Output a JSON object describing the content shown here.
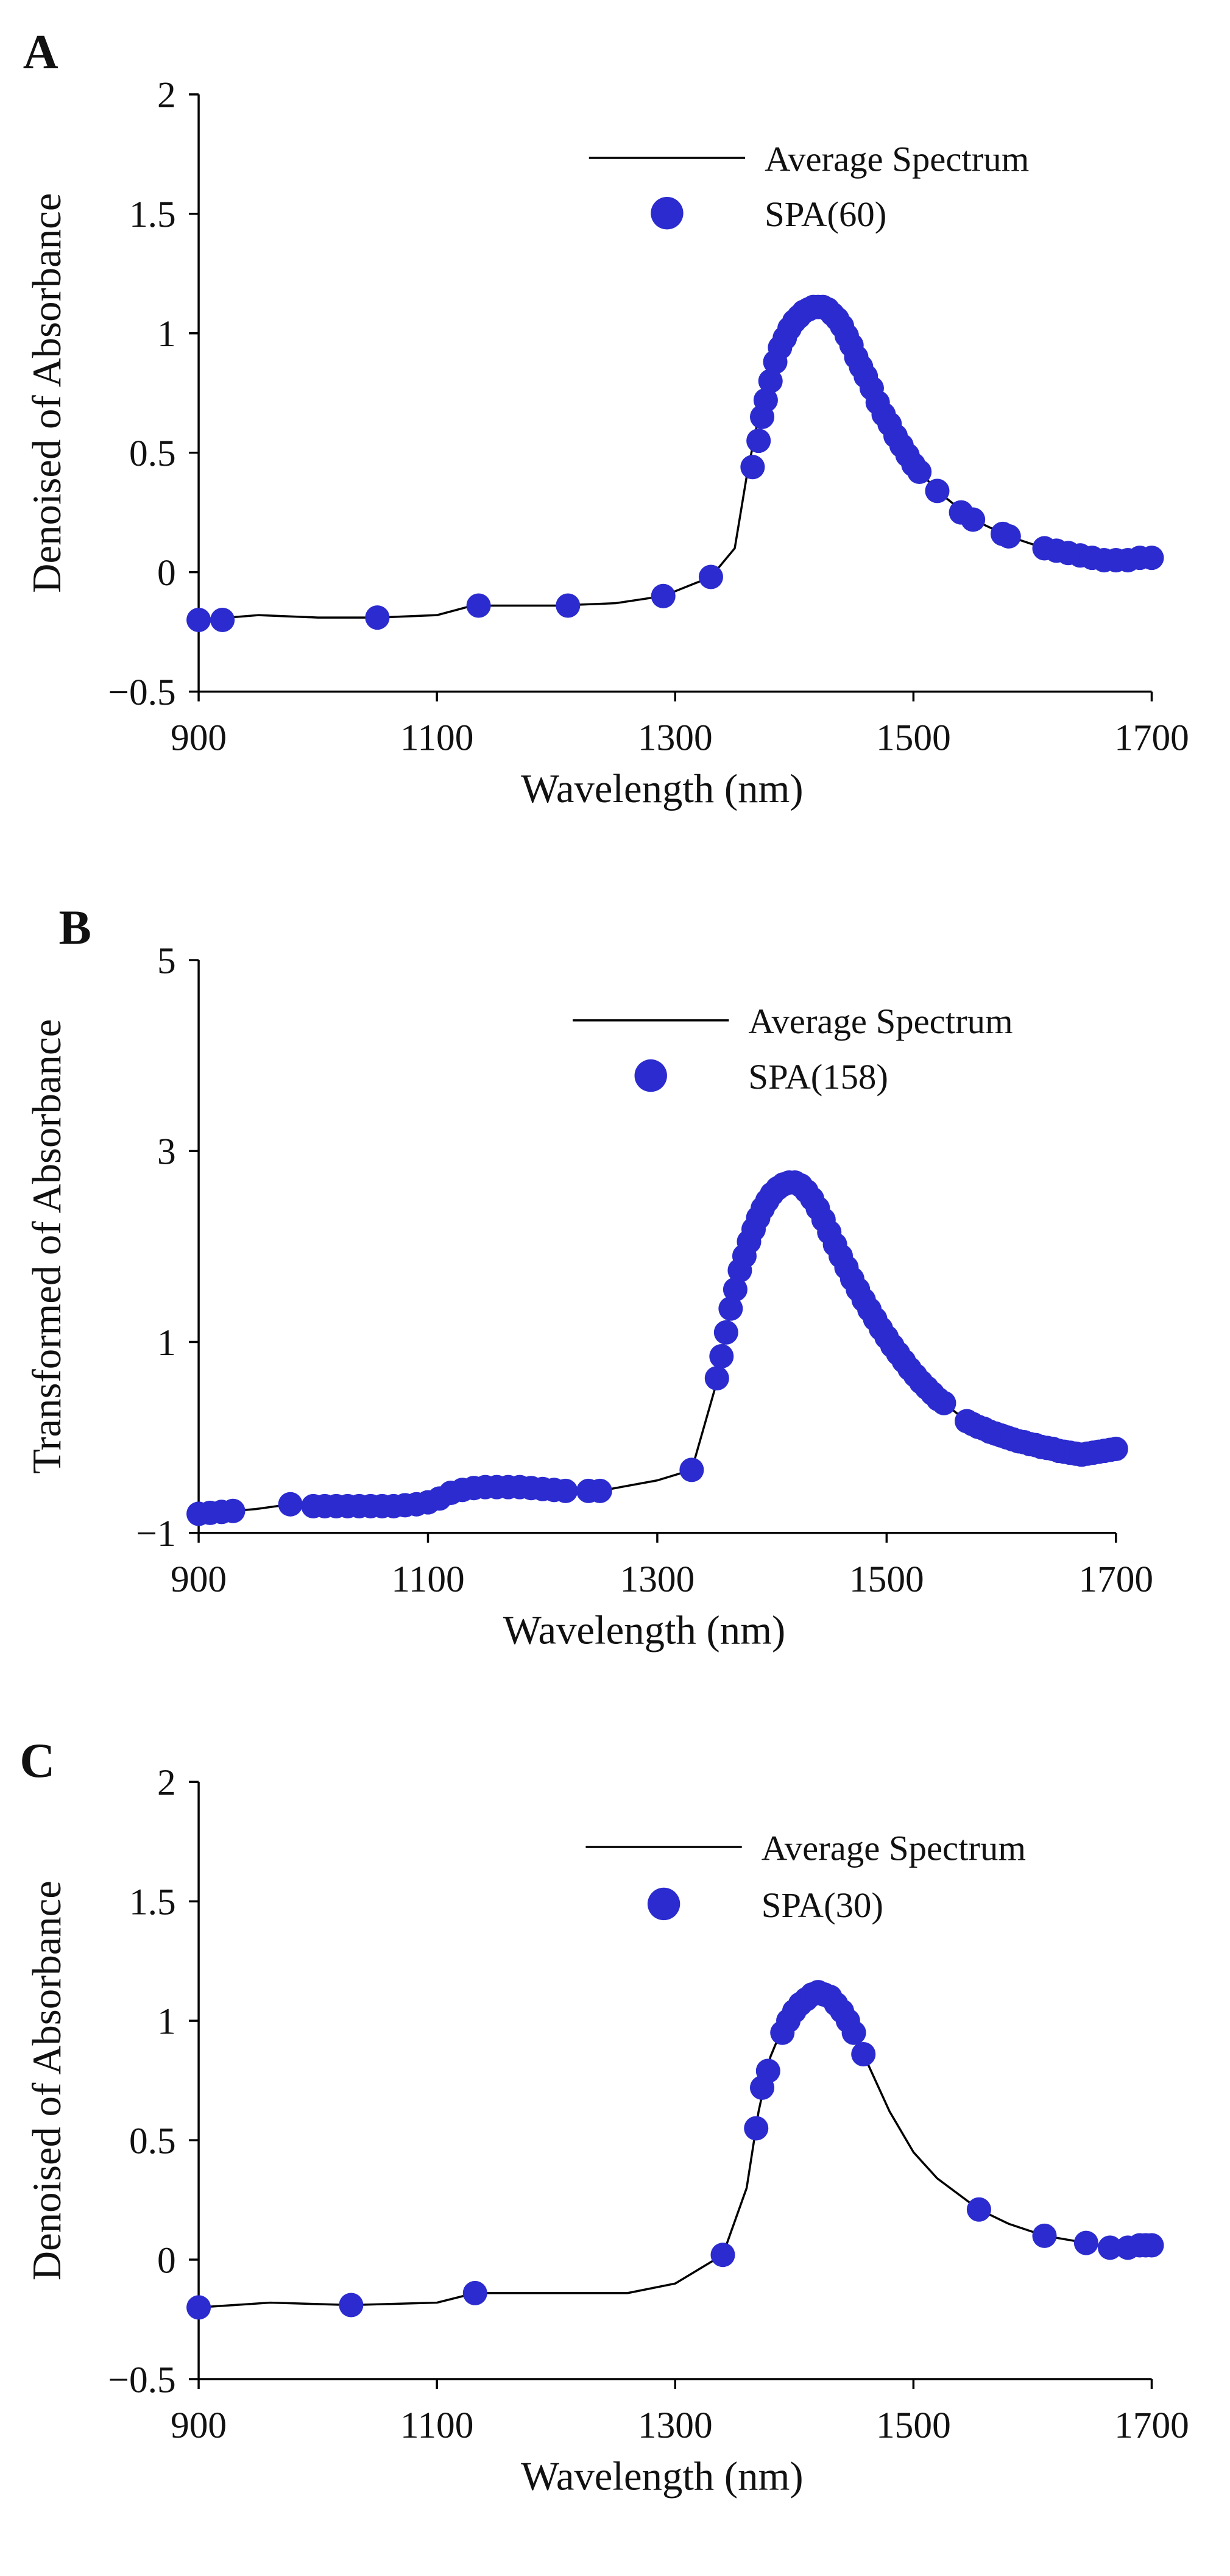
{
  "chart_data": [
    {
      "type": "line",
      "panel_label": "A",
      "xlabel": "Wavelength (nm)",
      "ylabel": "Denoised of Absorbance",
      "xlim": [
        900,
        1700
      ],
      "xticks": [
        900,
        1100,
        1300,
        1500,
        1700
      ],
      "ylim": [
        -0.5,
        2
      ],
      "yticks": [
        {
          "value": -0.5,
          "label": "−0.5"
        },
        0,
        0.5,
        1,
        1.5,
        2
      ],
      "series": [
        {
          "name": "Average Spectrum",
          "color": "#000000",
          "style": "line",
          "x": [
            900,
            950,
            1000,
            1050,
            1100,
            1130,
            1200,
            1250,
            1290,
            1330,
            1350,
            1360,
            1370,
            1380,
            1390,
            1400,
            1410,
            1420,
            1430,
            1440,
            1450,
            1460,
            1480,
            1500,
            1520,
            1550,
            1580,
            1610,
            1640,
            1670,
            1700
          ],
          "values": [
            -0.2,
            -0.18,
            -0.19,
            -0.19,
            -0.18,
            -0.14,
            -0.14,
            -0.13,
            -0.1,
            -0.02,
            0.1,
            0.4,
            0.65,
            0.85,
            0.98,
            1.06,
            1.1,
            1.11,
            1.09,
            1.03,
            0.93,
            0.82,
            0.62,
            0.45,
            0.34,
            0.22,
            0.15,
            0.1,
            0.07,
            0.05,
            0.06
          ]
        },
        {
          "name": "SPA(60)",
          "color": "#2b2bcf",
          "style": "scatter",
          "x": [
            900,
            920,
            1050,
            1135,
            1210,
            1290,
            1330,
            1365,
            1370,
            1373,
            1376,
            1380,
            1384,
            1388,
            1392,
            1396,
            1400,
            1404,
            1408,
            1412,
            1416,
            1420,
            1424,
            1428,
            1432,
            1436,
            1440,
            1444,
            1448,
            1452,
            1456,
            1460,
            1465,
            1470,
            1475,
            1480,
            1485,
            1490,
            1495,
            1500,
            1505,
            1520,
            1540,
            1550,
            1575,
            1580,
            1610,
            1620,
            1630,
            1640,
            1650,
            1660,
            1670,
            1680,
            1690,
            1700
          ],
          "values": [
            -0.2,
            -0.2,
            -0.19,
            -0.14,
            -0.14,
            -0.1,
            -0.02,
            0.44,
            0.55,
            0.65,
            0.72,
            0.8,
            0.88,
            0.94,
            0.98,
            1.02,
            1.05,
            1.07,
            1.09,
            1.1,
            1.11,
            1.11,
            1.11,
            1.1,
            1.08,
            1.06,
            1.03,
            0.99,
            0.95,
            0.9,
            0.86,
            0.82,
            0.77,
            0.71,
            0.66,
            0.62,
            0.57,
            0.53,
            0.49,
            0.45,
            0.42,
            0.34,
            0.25,
            0.22,
            0.16,
            0.15,
            0.1,
            0.09,
            0.08,
            0.07,
            0.06,
            0.05,
            0.05,
            0.05,
            0.06,
            0.06
          ]
        }
      ]
    },
    {
      "type": "line",
      "panel_label": "B",
      "xlabel": "Wavelength (nm)",
      "ylabel": "Transformed of Absorbance",
      "xlim": [
        900,
        1700
      ],
      "xticks": [
        900,
        1100,
        1300,
        1500,
        1700
      ],
      "ylim": [
        -1,
        5
      ],
      "yticks": [
        {
          "value": -1,
          "label": "−1"
        },
        1,
        3,
        5
      ],
      "series": [
        {
          "name": "Average Spectrum",
          "color": "#000000",
          "style": "line",
          "x": [
            900,
            950,
            980,
            1000,
            1050,
            1100,
            1120,
            1150,
            1200,
            1250,
            1300,
            1330,
            1350,
            1360,
            1370,
            1380,
            1390,
            1400,
            1410,
            1420,
            1430,
            1440,
            1460,
            1480,
            1500,
            1520,
            1550,
            1570,
            1600,
            1630,
            1670,
            1700
          ],
          "values": [
            -0.8,
            -0.75,
            -0.7,
            -0.72,
            -0.72,
            -0.68,
            -0.58,
            -0.52,
            -0.54,
            -0.56,
            -0.45,
            -0.34,
            0.5,
            1.1,
            1.65,
            2.05,
            2.35,
            2.55,
            2.65,
            2.67,
            2.58,
            2.4,
            1.9,
            1.44,
            1.05,
            0.72,
            0.36,
            0.17,
            0.02,
            -0.08,
            -0.18,
            -0.12
          ]
        },
        {
          "name": "SPA(158)",
          "color": "#2b2bcf",
          "style": "scatter",
          "x": [
            900,
            910,
            920,
            930,
            980,
            1000,
            1010,
            1020,
            1030,
            1040,
            1050,
            1060,
            1070,
            1080,
            1090,
            1100,
            1110,
            1120,
            1130,
            1140,
            1150,
            1160,
            1170,
            1180,
            1190,
            1200,
            1210,
            1220,
            1240,
            1250,
            1330,
            1352,
            1356,
            1360,
            1364,
            1368,
            1372,
            1376,
            1380,
            1384,
            1388,
            1392,
            1396,
            1400,
            1405,
            1410,
            1415,
            1420,
            1425,
            1430,
            1435,
            1440,
            1445,
            1450,
            1455,
            1460,
            1465,
            1470,
            1475,
            1480,
            1485,
            1490,
            1495,
            1500,
            1505,
            1510,
            1515,
            1520,
            1525,
            1530,
            1535,
            1540,
            1545,
            1550,
            1570,
            1575,
            1580,
            1585,
            1590,
            1595,
            1600,
            1605,
            1610,
            1615,
            1620,
            1625,
            1630,
            1635,
            1640,
            1645,
            1650,
            1655,
            1660,
            1665,
            1670,
            1675,
            1680,
            1685,
            1690,
            1695,
            1700
          ],
          "values": [
            -0.8,
            -0.79,
            -0.78,
            -0.77,
            -0.7,
            -0.72,
            -0.72,
            -0.72,
            -0.72,
            -0.72,
            -0.72,
            -0.72,
            -0.72,
            -0.71,
            -0.7,
            -0.68,
            -0.64,
            -0.58,
            -0.55,
            -0.53,
            -0.52,
            -0.52,
            -0.52,
            -0.52,
            -0.53,
            -0.54,
            -0.55,
            -0.56,
            -0.56,
            -0.56,
            -0.34,
            0.62,
            0.85,
            1.1,
            1.35,
            1.55,
            1.75,
            1.9,
            2.05,
            2.18,
            2.3,
            2.4,
            2.48,
            2.55,
            2.61,
            2.65,
            2.67,
            2.67,
            2.64,
            2.58,
            2.5,
            2.4,
            2.28,
            2.15,
            2.02,
            1.9,
            1.78,
            1.66,
            1.55,
            1.44,
            1.34,
            1.24,
            1.14,
            1.05,
            0.96,
            0.88,
            0.8,
            0.72,
            0.65,
            0.58,
            0.52,
            0.46,
            0.4,
            0.36,
            0.17,
            0.14,
            0.11,
            0.09,
            0.06,
            0.04,
            0.02,
            0.0,
            -0.02,
            -0.04,
            -0.05,
            -0.07,
            -0.08,
            -0.1,
            -0.11,
            -0.12,
            -0.14,
            -0.15,
            -0.16,
            -0.17,
            -0.18,
            -0.17,
            -0.16,
            -0.15,
            -0.14,
            -0.13,
            -0.12
          ]
        }
      ]
    },
    {
      "type": "line",
      "panel_label": "C",
      "xlabel": "Wavelength (nm)",
      "ylabel": "Denoised of Absorbance",
      "xlim": [
        900,
        1700
      ],
      "xticks": [
        900,
        1100,
        1300,
        1500,
        1700
      ],
      "ylim": [
        -0.5,
        2
      ],
      "yticks": [
        {
          "value": -0.5,
          "label": "−0.5"
        },
        0,
        0.5,
        1,
        1.5,
        2
      ],
      "series": [
        {
          "name": "Average Spectrum",
          "color": "#000000",
          "style": "line",
          "x": [
            900,
            960,
            1028,
            1100,
            1132,
            1200,
            1260,
            1300,
            1340,
            1360,
            1370,
            1380,
            1390,
            1400,
            1410,
            1420,
            1430,
            1440,
            1450,
            1458,
            1480,
            1500,
            1520,
            1555,
            1580,
            1610,
            1645,
            1665,
            1700
          ],
          "values": [
            -0.2,
            -0.18,
            -0.19,
            -0.18,
            -0.14,
            -0.14,
            -0.14,
            -0.1,
            0.02,
            0.3,
            0.62,
            0.85,
            0.97,
            1.05,
            1.09,
            1.12,
            1.1,
            1.04,
            0.95,
            0.86,
            0.62,
            0.45,
            0.34,
            0.21,
            0.15,
            0.1,
            0.07,
            0.05,
            0.06
          ]
        },
        {
          "name": "SPA(30)",
          "color": "#2b2bcf",
          "style": "scatter",
          "x": [
            900,
            1028,
            1132,
            1340,
            1368,
            1373,
            1378,
            1390,
            1395,
            1400,
            1405,
            1410,
            1415,
            1420,
            1425,
            1430,
            1435,
            1440,
            1445,
            1450,
            1458,
            1555,
            1610,
            1645,
            1665,
            1680,
            1690,
            1695,
            1700
          ],
          "values": [
            -0.2,
            -0.19,
            -0.14,
            0.02,
            0.55,
            0.72,
            0.79,
            0.95,
            1.0,
            1.04,
            1.07,
            1.09,
            1.11,
            1.12,
            1.11,
            1.1,
            1.07,
            1.04,
            1.0,
            0.95,
            0.86,
            0.21,
            0.1,
            0.07,
            0.05,
            0.05,
            0.06,
            0.06,
            0.06
          ]
        }
      ]
    }
  ]
}
